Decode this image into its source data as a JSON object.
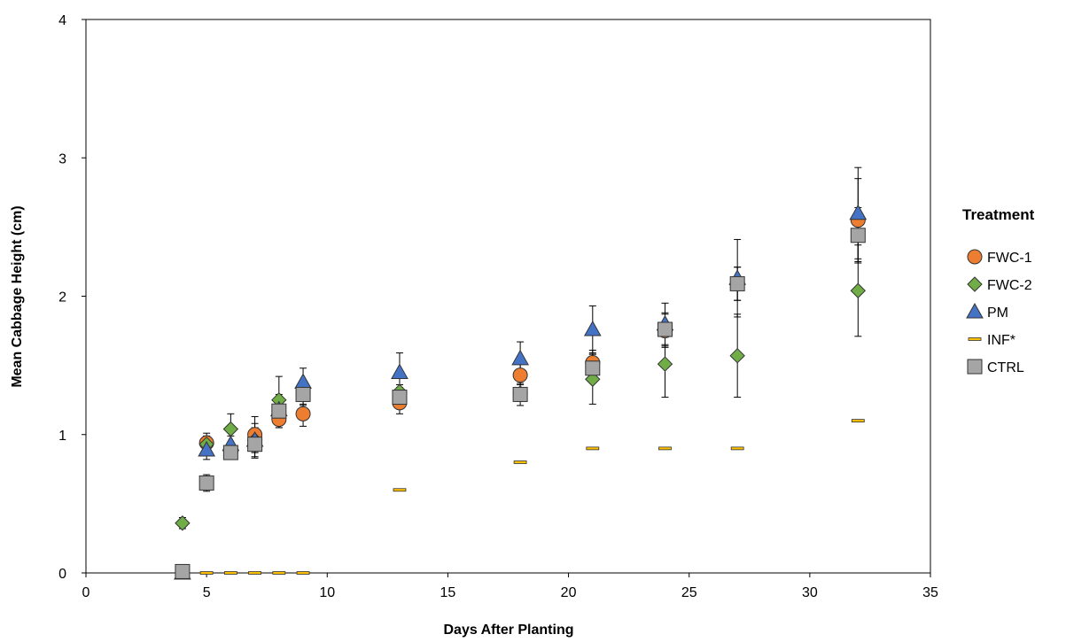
{
  "chart_data": {
    "type": "scatter",
    "title": "",
    "xlabel": "Days After Planting",
    "ylabel": "Mean Cabbage Height (cm)",
    "xlim": [
      0,
      35
    ],
    "ylim": [
      0,
      4
    ],
    "xticks": [
      0,
      5,
      10,
      15,
      20,
      25,
      30,
      35
    ],
    "yticks": [
      0,
      1,
      2,
      3,
      4
    ],
    "grid": false,
    "error_bars": true,
    "legend": {
      "title": "Treatment",
      "position": "right"
    },
    "series": [
      {
        "name": "FWC-1",
        "marker": "circle",
        "color": "#ED7D31",
        "points": [
          {
            "x": 5,
            "y": 0.94,
            "err": 0.07
          },
          {
            "x": 6,
            "y": 0.88,
            "err": 0.05
          },
          {
            "x": 7,
            "y": 1.0,
            "err": 0.13
          },
          {
            "x": 8,
            "y": 1.11,
            "err": 0.06
          },
          {
            "x": 9,
            "y": 1.15,
            "err": 0.09
          },
          {
            "x": 13,
            "y": 1.23,
            "err": 0.08
          },
          {
            "x": 18,
            "y": 1.43,
            "err": 0.1
          },
          {
            "x": 21,
            "y": 1.52,
            "err": 0.09
          },
          {
            "x": 24,
            "y": 1.75,
            "err": 0.12
          },
          {
            "x": 27,
            "y": 2.09,
            "err": 0.12
          },
          {
            "x": 32,
            "y": 2.55,
            "err": 0.3
          }
        ]
      },
      {
        "name": "FWC-2",
        "marker": "diamond",
        "color": "#70AD47",
        "points": [
          {
            "x": 4,
            "y": 0.36,
            "err": 0.04
          },
          {
            "x": 5,
            "y": 0.93,
            "err": 0.06
          },
          {
            "x": 6,
            "y": 1.04,
            "err": 0.11
          },
          {
            "x": 7,
            "y": 0.96,
            "err": 0.12
          },
          {
            "x": 8,
            "y": 1.25,
            "err": 0.17
          },
          {
            "x": 9,
            "y": 1.3,
            "err": 0.08
          },
          {
            "x": 13,
            "y": 1.31,
            "err": 0.05
          },
          {
            "x": 18,
            "y": 1.3,
            "err": 0.06
          },
          {
            "x": 21,
            "y": 1.4,
            "err": 0.18
          },
          {
            "x": 24,
            "y": 1.51,
            "err": 0.24
          },
          {
            "x": 27,
            "y": 1.57,
            "err": 0.3
          },
          {
            "x": 32,
            "y": 2.04,
            "err": 0.33
          }
        ]
      },
      {
        "name": "PM",
        "marker": "triangle",
        "color": "#4472C4",
        "points": [
          {
            "x": 4,
            "y": 0.0,
            "err": 0
          },
          {
            "x": 5,
            "y": 0.89,
            "err": 0.07
          },
          {
            "x": 6,
            "y": 0.93,
            "err": 0.06
          },
          {
            "x": 7,
            "y": 0.96,
            "err": 0.09
          },
          {
            "x": 8,
            "y": 1.18,
            "err": 0.08
          },
          {
            "x": 9,
            "y": 1.38,
            "err": 0.1
          },
          {
            "x": 13,
            "y": 1.45,
            "err": 0.14
          },
          {
            "x": 18,
            "y": 1.55,
            "err": 0.12
          },
          {
            "x": 21,
            "y": 1.76,
            "err": 0.17
          },
          {
            "x": 24,
            "y": 1.8,
            "err": 0.15
          },
          {
            "x": 27,
            "y": 2.13,
            "err": 0.28
          },
          {
            "x": 32,
            "y": 2.6,
            "err": 0.33
          }
        ]
      },
      {
        "name": "INF*",
        "marker": "dash",
        "color": "#FFC000",
        "points": [
          {
            "x": 4,
            "y": 0.0,
            "err": 0
          },
          {
            "x": 5,
            "y": 0.0,
            "err": 0
          },
          {
            "x": 6,
            "y": 0.0,
            "err": 0
          },
          {
            "x": 7,
            "y": 0.0,
            "err": 0
          },
          {
            "x": 8,
            "y": 0.0,
            "err": 0
          },
          {
            "x": 9,
            "y": 0.0,
            "err": 0
          },
          {
            "x": 13,
            "y": 0.6,
            "err": 0
          },
          {
            "x": 18,
            "y": 0.8,
            "err": 0
          },
          {
            "x": 21,
            "y": 0.9,
            "err": 0
          },
          {
            "x": 24,
            "y": 0.9,
            "err": 0
          },
          {
            "x": 27,
            "y": 0.9,
            "err": 0
          },
          {
            "x": 32,
            "y": 1.1,
            "err": 0
          }
        ]
      },
      {
        "name": "CTRL",
        "marker": "square",
        "color": "#A5A5A5",
        "points": [
          {
            "x": 4,
            "y": 0.01,
            "err": 0
          },
          {
            "x": 5,
            "y": 0.65,
            "err": 0.06
          },
          {
            "x": 6,
            "y": 0.87,
            "err": 0.05
          },
          {
            "x": 7,
            "y": 0.93,
            "err": 0.1
          },
          {
            "x": 8,
            "y": 1.17,
            "err": 0.12
          },
          {
            "x": 9,
            "y": 1.29,
            "err": 0.08
          },
          {
            "x": 13,
            "y": 1.27,
            "err": 0.07
          },
          {
            "x": 18,
            "y": 1.29,
            "err": 0.08
          },
          {
            "x": 21,
            "y": 1.48,
            "err": 0.1
          },
          {
            "x": 24,
            "y": 1.76,
            "err": 0.12
          },
          {
            "x": 27,
            "y": 2.09,
            "err": 0.12
          },
          {
            "x": 32,
            "y": 2.44,
            "err": 0.2
          }
        ]
      }
    ]
  }
}
